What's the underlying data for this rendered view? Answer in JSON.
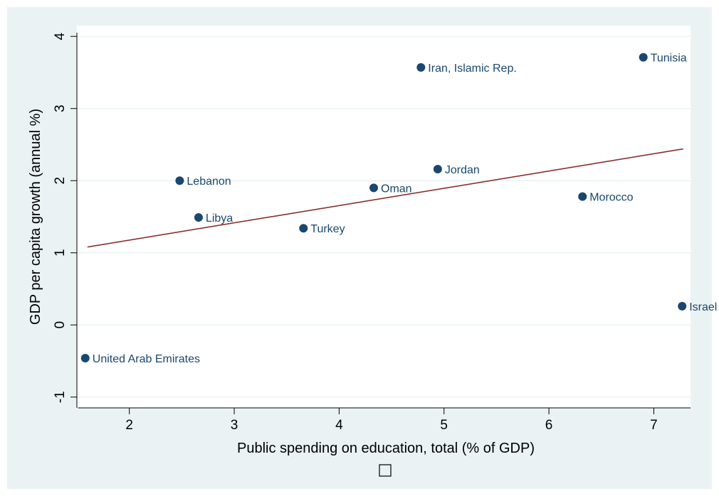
{
  "chart_data": {
    "type": "scatter",
    "title": "",
    "xlabel": "Public spending on education, total (% of GDP)",
    "ylabel": "GDP per capita growth (annual %)",
    "xlim": [
      1.5,
      7.35
    ],
    "ylim": [
      -1.15,
      4.15
    ],
    "xticks": [
      2,
      3,
      4,
      5,
      6,
      7
    ],
    "yticks": [
      -1,
      0,
      1,
      2,
      3,
      4
    ],
    "grid": true,
    "legend_symbol": "empty-square",
    "series": [
      {
        "points": [
          {
            "label": "United Arab Emirates",
            "x": 1.58,
            "y": -0.46
          },
          {
            "label": "Lebanon",
            "x": 2.48,
            "y": 2.0
          },
          {
            "label": "Libya",
            "x": 2.66,
            "y": 1.49
          },
          {
            "label": "Turkey",
            "x": 3.66,
            "y": 1.34
          },
          {
            "label": "Oman",
            "x": 4.33,
            "y": 1.9
          },
          {
            "label": "Iran, Islamic Rep.",
            "x": 4.78,
            "y": 3.57
          },
          {
            "label": "Jordan",
            "x": 4.94,
            "y": 2.16
          },
          {
            "label": "Morocco",
            "x": 6.32,
            "y": 1.78
          },
          {
            "label": "Tunisia",
            "x": 6.9,
            "y": 3.71
          },
          {
            "label": "Israel",
            "x": 7.27,
            "y": 0.26
          }
        ]
      }
    ],
    "fit_line": {
      "x": [
        1.6,
        7.28
      ],
      "y": [
        1.08,
        2.44
      ],
      "color": "#8b2f2f"
    },
    "colors": {
      "background": "#eaf2f3",
      "plot_area": "#ffffff",
      "marker": "#1a476f",
      "grid": "#eaf2f3"
    }
  }
}
